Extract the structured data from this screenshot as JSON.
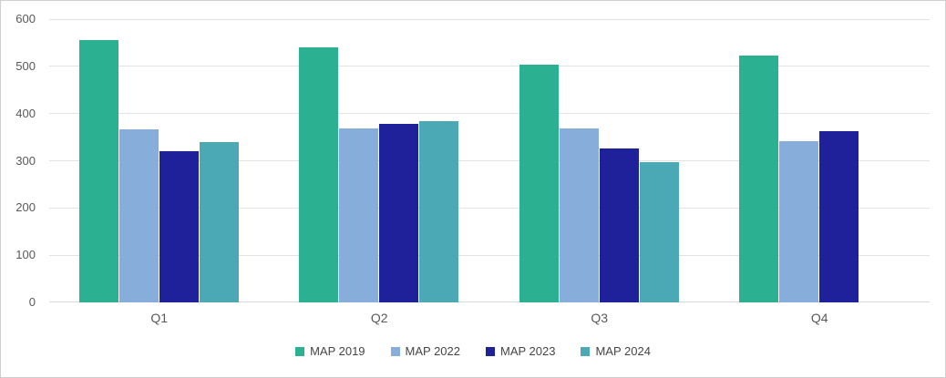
{
  "chart_data": {
    "type": "bar",
    "categories": [
      "Q1",
      "Q2",
      "Q3",
      "Q4"
    ],
    "series": [
      {
        "name": "MAP 2019",
        "color": "#2bb092",
        "values": [
          555,
          540,
          504,
          522
        ]
      },
      {
        "name": "MAP 2022",
        "color": "#87aedb",
        "values": [
          366,
          368,
          369,
          341
        ]
      },
      {
        "name": "MAP 2023",
        "color": "#1f219b",
        "values": [
          321,
          378,
          327,
          363
        ]
      },
      {
        "name": "MAP 2024",
        "color": "#4aa9b5",
        "values": [
          339,
          384,
          298,
          null
        ]
      }
    ],
    "title": "",
    "xlabel": "",
    "ylabel": "",
    "ylim": [
      0,
      600
    ],
    "ytick_step": 100,
    "yticks": [
      "0",
      "100",
      "200",
      "300",
      "400",
      "500",
      "600"
    ],
    "grid": true,
    "legend_position": "bottom"
  },
  "colors": {
    "background": "#ffffff",
    "frame_border": "#d0cece",
    "gridline": "#e2e2e2",
    "axis_baseline": "#d9d9d9",
    "tick_text": "#595959",
    "legend_text": "#454545"
  }
}
